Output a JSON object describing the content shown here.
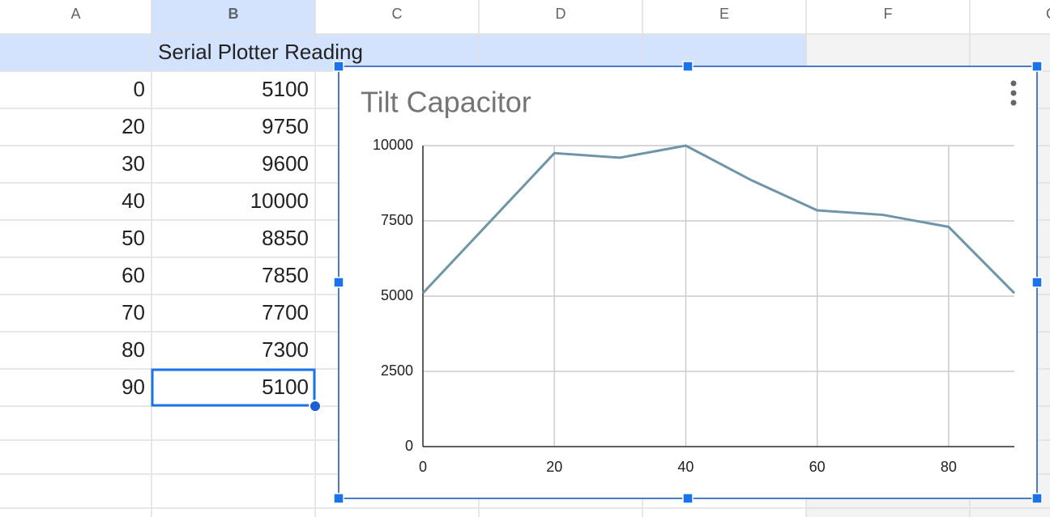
{
  "columns": [
    "A",
    "B",
    "C",
    "D",
    "E",
    "F",
    "G"
  ],
  "chart_data": {
    "type": "line",
    "title": "Tilt Capacitor",
    "x": [
      0,
      20,
      30,
      40,
      50,
      60,
      70,
      80,
      90
    ],
    "series": [
      {
        "name": "Serial Plotter Reading",
        "color": "#6f95a8",
        "values": [
          5100,
          9750,
          9600,
          10000,
          8850,
          7850,
          7700,
          7300,
          5100
        ]
      }
    ],
    "xlim": [
      0,
      90
    ],
    "xticks": [
      0,
      20,
      40,
      60,
      80
    ],
    "ylim": [
      0,
      10000
    ],
    "yticks": [
      0,
      2500,
      5000,
      7500,
      10000
    ],
    "grid": true
  }
}
